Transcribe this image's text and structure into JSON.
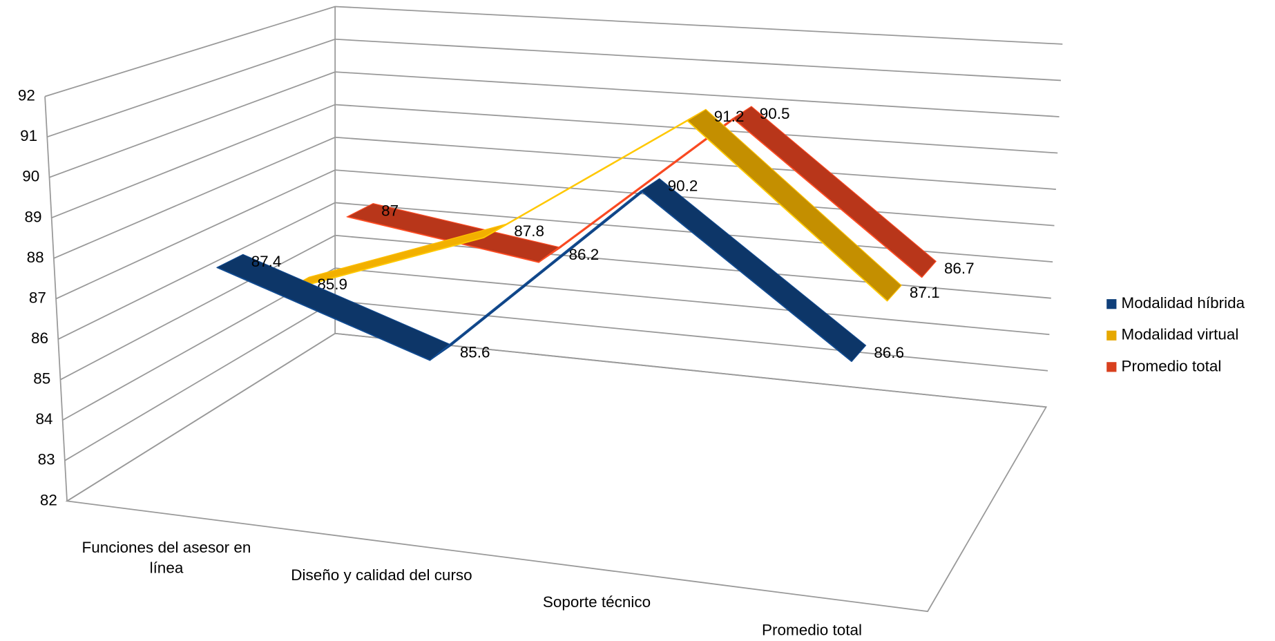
{
  "chart_data": {
    "type": "line3d",
    "categories": [
      "Funciones del asesor en línea",
      "Diseño y calidad del curso",
      "Soporte técnico",
      "Promedio total"
    ],
    "series": [
      {
        "name": "Modalidad híbrida",
        "color": "#0f3f7a",
        "values": [
          87.4,
          85.6,
          90.2,
          86.6
        ]
      },
      {
        "name": "Modalidad virtual",
        "color": "#e6a800",
        "values": [
          85.9,
          87.8,
          91.2,
          87.1
        ]
      },
      {
        "name": "Promedio total",
        "color": "#d8401e",
        "values": [
          87,
          86.2,
          90.5,
          86.7
        ]
      }
    ],
    "ylim": [
      82,
      92
    ],
    "yticks": [
      82,
      83,
      84,
      85,
      86,
      87,
      88,
      89,
      90,
      91,
      92
    ],
    "grid": true,
    "legend": "right"
  }
}
